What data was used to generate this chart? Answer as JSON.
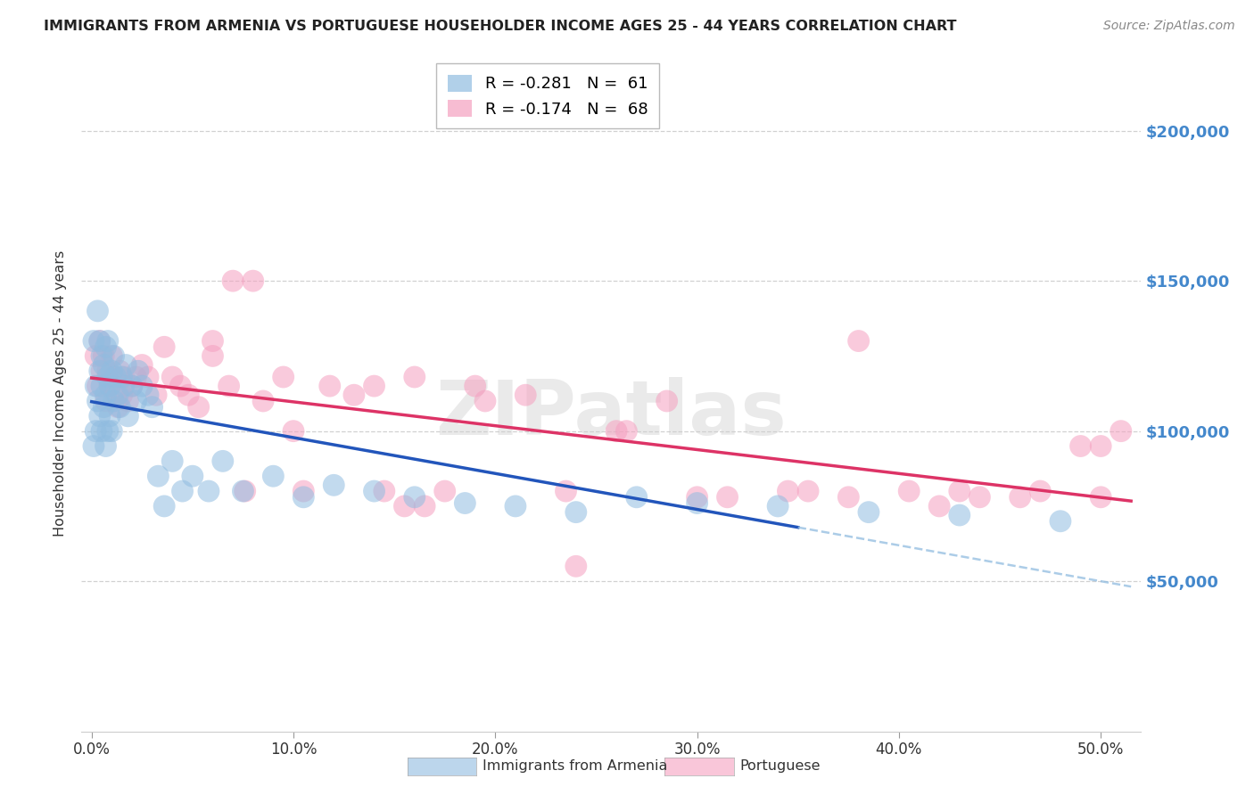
{
  "title": "IMMIGRANTS FROM ARMENIA VS PORTUGUESE HOUSEHOLDER INCOME AGES 25 - 44 YEARS CORRELATION CHART",
  "source": "Source: ZipAtlas.com",
  "ylabel": "Householder Income Ages 25 - 44 years",
  "xlabel_ticks": [
    "0.0%",
    "10.0%",
    "20.0%",
    "30.0%",
    "40.0%",
    "50.0%"
  ],
  "xlabel_vals": [
    0.0,
    0.1,
    0.2,
    0.3,
    0.4,
    0.5
  ],
  "ytick_labels": [
    "$50,000",
    "$100,000",
    "$150,000",
    "$200,000"
  ],
  "ytick_vals": [
    50000,
    100000,
    150000,
    200000
  ],
  "xlim": [
    -0.005,
    0.52
  ],
  "ylim": [
    0,
    225000
  ],
  "armenia_color": "#90bce0",
  "portuguese_color": "#f5a0c0",
  "armenia_trendline_color": "#2255bb",
  "portuguese_trendline_color": "#dd3366",
  "armenia_dashed_color": "#90bce0",
  "bg_color": "#ffffff",
  "grid_color": "#cccccc",
  "ytick_color": "#4488cc",
  "title_color": "#222222",
  "watermark": "ZIPatlas",
  "legend_entry1": "R = -0.281   N =  61",
  "legend_entry2": "R = -0.174   N =  68",
  "legend_label1": "Immigrants from Armenia",
  "legend_label2": "Portuguese",
  "armenia_x": [
    0.001,
    0.001,
    0.002,
    0.002,
    0.003,
    0.003,
    0.004,
    0.004,
    0.004,
    0.005,
    0.005,
    0.005,
    0.006,
    0.006,
    0.007,
    0.007,
    0.007,
    0.008,
    0.008,
    0.008,
    0.009,
    0.009,
    0.01,
    0.01,
    0.011,
    0.011,
    0.012,
    0.013,
    0.014,
    0.015,
    0.016,
    0.017,
    0.018,
    0.02,
    0.022,
    0.023,
    0.025,
    0.028,
    0.03,
    0.033,
    0.036,
    0.04,
    0.045,
    0.05,
    0.058,
    0.065,
    0.075,
    0.09,
    0.105,
    0.12,
    0.14,
    0.16,
    0.185,
    0.21,
    0.24,
    0.27,
    0.3,
    0.34,
    0.385,
    0.43,
    0.48
  ],
  "armenia_y": [
    95000,
    130000,
    100000,
    115000,
    140000,
    110000,
    120000,
    130000,
    105000,
    100000,
    115000,
    125000,
    108000,
    122000,
    95000,
    112000,
    128000,
    100000,
    118000,
    130000,
    105000,
    115000,
    100000,
    120000,
    110000,
    125000,
    118000,
    112000,
    108000,
    118000,
    115000,
    122000,
    105000,
    115000,
    110000,
    120000,
    115000,
    112000,
    108000,
    85000,
    75000,
    90000,
    80000,
    85000,
    80000,
    90000,
    80000,
    85000,
    78000,
    82000,
    80000,
    78000,
    76000,
    75000,
    73000,
    78000,
    76000,
    75000,
    73000,
    72000,
    70000
  ],
  "portuguese_x": [
    0.002,
    0.003,
    0.004,
    0.005,
    0.006,
    0.007,
    0.008,
    0.009,
    0.01,
    0.011,
    0.012,
    0.013,
    0.014,
    0.015,
    0.016,
    0.018,
    0.02,
    0.022,
    0.025,
    0.028,
    0.032,
    0.036,
    0.04,
    0.044,
    0.048,
    0.053,
    0.06,
    0.068,
    0.076,
    0.085,
    0.095,
    0.105,
    0.118,
    0.13,
    0.145,
    0.16,
    0.175,
    0.195,
    0.215,
    0.235,
    0.26,
    0.285,
    0.315,
    0.345,
    0.375,
    0.405,
    0.44,
    0.47,
    0.5,
    0.51,
    0.14,
    0.165,
    0.06,
    0.38,
    0.5,
    0.43,
    0.24,
    0.19,
    0.265,
    0.3,
    0.07,
    0.155,
    0.1,
    0.08,
    0.355,
    0.42,
    0.46,
    0.49
  ],
  "portuguese_y": [
    125000,
    115000,
    130000,
    120000,
    125000,
    110000,
    120000,
    115000,
    125000,
    118000,
    112000,
    108000,
    120000,
    112000,
    118000,
    110000,
    115000,
    118000,
    122000,
    118000,
    112000,
    128000,
    118000,
    115000,
    112000,
    108000,
    125000,
    115000,
    80000,
    110000,
    118000,
    80000,
    115000,
    112000,
    80000,
    118000,
    80000,
    110000,
    112000,
    80000,
    100000,
    110000,
    78000,
    80000,
    78000,
    80000,
    78000,
    80000,
    78000,
    100000,
    115000,
    75000,
    130000,
    130000,
    95000,
    80000,
    55000,
    115000,
    100000,
    78000,
    150000,
    75000,
    100000,
    150000,
    80000,
    75000,
    78000,
    95000
  ]
}
